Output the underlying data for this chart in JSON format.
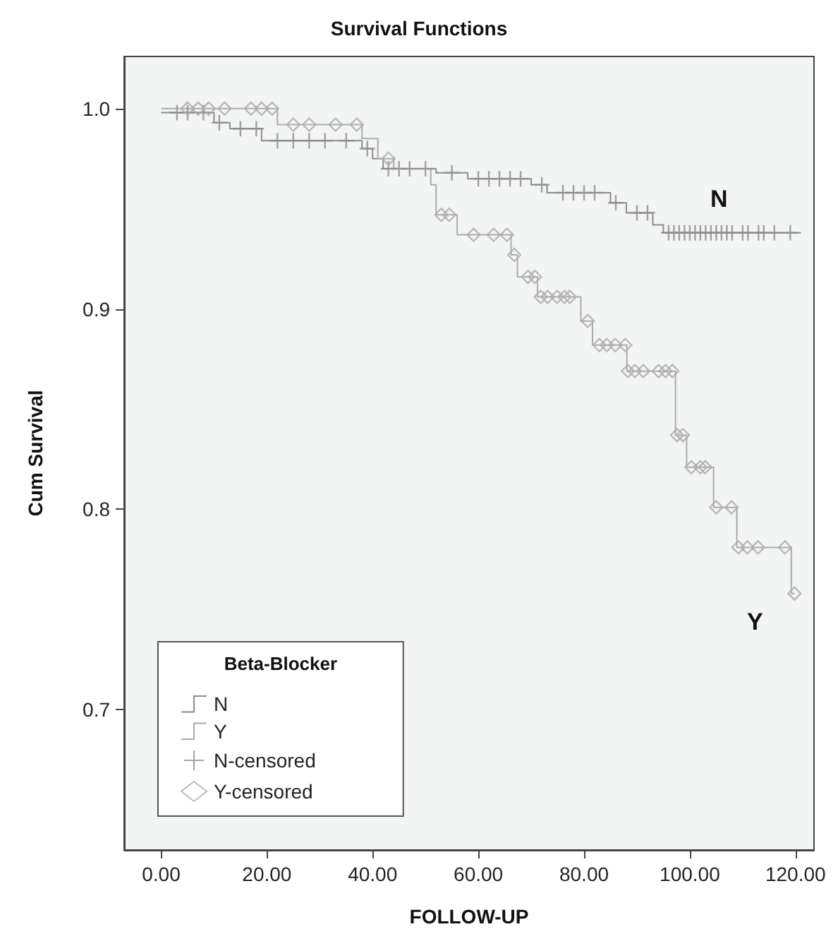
{
  "chart_data": {
    "type": "step",
    "title": "Survival Functions",
    "xlabel": "FOLLOW-UP",
    "ylabel": "Cum Survival",
    "legend_title": "Beta-Blocker",
    "legend": "bottom left",
    "xlim": [
      -7,
      123.5
    ],
    "ylim": [
      0.63,
      1.026
    ],
    "xticks": [
      {
        "value": 0,
        "label": "0.00"
      },
      {
        "value": 20,
        "label": "20.00"
      },
      {
        "value": 40,
        "label": "40.00"
      },
      {
        "value": 60,
        "label": "60.00"
      },
      {
        "value": 80,
        "label": "80.00"
      },
      {
        "value": 100,
        "label": "100.00"
      },
      {
        "value": 120,
        "label": "120.00"
      }
    ],
    "yticks": [
      {
        "value": 0.7,
        "label": "0.7"
      },
      {
        "value": 0.8,
        "label": "0.8"
      },
      {
        "value": 0.9,
        "label": "0.9"
      },
      {
        "value": 1.0,
        "label": "1.0"
      }
    ],
    "annotations": [
      "N",
      "Y"
    ],
    "series": [
      {
        "name": "N",
        "marker": "none",
        "color": "#8c8c8c",
        "x": [
          0,
          10,
          13,
          19,
          38,
          40,
          42,
          52,
          58,
          70,
          73,
          85,
          88,
          93,
          95,
          121
        ],
        "values": [
          0.998,
          0.993,
          0.99,
          0.984,
          0.98,
          0.975,
          0.97,
          0.968,
          0.965,
          0.962,
          0.958,
          0.953,
          0.948,
          0.942,
          0.938,
          0.938
        ]
      },
      {
        "name": "Y",
        "marker": "none",
        "color": "#ababab",
        "x": [
          0,
          22,
          38,
          41,
          44,
          51,
          52,
          56,
          66.2,
          67.4,
          71.2,
          79.4,
          81.6,
          88.1,
          97.3,
          99.4,
          104.5,
          108.9,
          119.2,
          119.8
        ],
        "values": [
          1.0,
          0.992,
          0.985,
          0.975,
          0.97,
          0.962,
          0.947,
          0.937,
          0.927,
          0.916,
          0.906,
          0.894,
          0.882,
          0.869,
          0.837,
          0.821,
          0.801,
          0.781,
          0.758,
          0.758
        ]
      },
      {
        "name": "N-censored",
        "type": "scatter",
        "marker": "cross",
        "color": "#8c8c8c",
        "x": [
          3,
          5,
          8,
          11,
          15,
          18,
          22,
          25,
          28,
          31,
          35,
          39,
          43,
          45,
          47,
          50,
          55,
          60,
          62,
          64,
          66,
          68,
          72,
          76,
          78,
          80,
          82,
          86,
          90,
          92,
          96,
          97,
          98,
          99,
          100,
          101,
          102,
          103,
          104,
          105,
          106,
          107,
          108,
          110,
          111,
          113,
          114,
          116,
          119
        ],
        "values": [
          0.998,
          0.998,
          0.998,
          0.993,
          0.99,
          0.99,
          0.984,
          0.984,
          0.984,
          0.984,
          0.984,
          0.98,
          0.97,
          0.97,
          0.97,
          0.97,
          0.968,
          0.965,
          0.965,
          0.965,
          0.965,
          0.965,
          0.962,
          0.958,
          0.958,
          0.958,
          0.958,
          0.953,
          0.948,
          0.948,
          0.938,
          0.938,
          0.938,
          0.938,
          0.938,
          0.938,
          0.938,
          0.938,
          0.938,
          0.938,
          0.938,
          0.938,
          0.938,
          0.938,
          0.938,
          0.938,
          0.938,
          0.938,
          0.938
        ]
      },
      {
        "name": "Y-censored",
        "type": "scatter",
        "marker": "diamond",
        "color": "#ababab",
        "x": [
          5,
          7,
          9,
          12,
          17,
          19,
          21,
          25,
          28,
          33,
          37,
          43,
          53,
          54.5,
          59.1,
          62.9,
          65.4,
          66.8,
          69.4,
          70.7,
          71.8,
          73.1,
          74.9,
          76.3,
          77.3,
          80.7,
          82.9,
          84.3,
          85.9,
          87.8,
          88.3,
          89.6,
          91.2,
          94.1,
          95.4,
          96.7,
          97.6,
          98.7,
          100.3,
          102,
          102.9,
          105,
          107.9,
          109.2,
          110.9,
          112.9,
          118,
          119.8
        ],
        "values": [
          1.0,
          1.0,
          1.0,
          1.0,
          1.0,
          1.0,
          1.0,
          0.992,
          0.992,
          0.992,
          0.992,
          0.975,
          0.947,
          0.947,
          0.937,
          0.937,
          0.937,
          0.927,
          0.916,
          0.916,
          0.906,
          0.906,
          0.906,
          0.906,
          0.906,
          0.894,
          0.882,
          0.882,
          0.882,
          0.882,
          0.869,
          0.869,
          0.869,
          0.869,
          0.869,
          0.869,
          0.837,
          0.837,
          0.821,
          0.821,
          0.821,
          0.801,
          0.801,
          0.781,
          0.781,
          0.781,
          0.781,
          0.758
        ]
      }
    ]
  }
}
